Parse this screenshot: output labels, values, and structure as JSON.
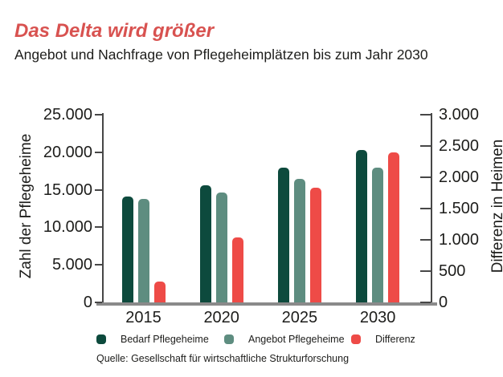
{
  "header": {
    "title": "Das Delta wird größer",
    "subtitle": "Angebot und Nachfrage von Pflegeheimplätzen bis zum Jahr 2030"
  },
  "colors": {
    "title_red": "#d85250",
    "bedarf": "#0d4a3d",
    "angebot": "#5e8d80",
    "differenz": "#ee4b47",
    "axis_line": "#474747",
    "baseline_gray": "#8a8a8a",
    "text": "#1d1d1b"
  },
  "chart_data": {
    "type": "bar",
    "categories": [
      "2015",
      "2020",
      "2025",
      "2030"
    ],
    "series": [
      {
        "name": "Bedarf Pflegeheime",
        "axis": "left",
        "color_key": "bedarf",
        "values": [
          14100,
          15650,
          18000,
          20300
        ]
      },
      {
        "name": "Angebot Pflegeheime",
        "axis": "left",
        "color_key": "angebot",
        "values": [
          13750,
          14650,
          16500,
          17900
        ]
      },
      {
        "name": "Differenz",
        "axis": "right",
        "color_key": "differenz",
        "values": [
          330,
          1040,
          1830,
          2400
        ]
      }
    ],
    "left_axis": {
      "label": "Zahl der Pflegeheime",
      "min": 0,
      "max": 25000,
      "step": 5000,
      "tick_labels": [
        "0",
        "5.000",
        "10.000",
        "15.000",
        "20.000",
        "25.000"
      ]
    },
    "right_axis": {
      "label": "Differenz in Heimen",
      "min": 0,
      "max": 3000,
      "step": 500,
      "tick_labels": [
        "0",
        "500",
        "1.000",
        "1.500",
        "2.000",
        "2.500",
        "3.000"
      ]
    },
    "grid": false,
    "legend_position": "bottom"
  },
  "source": "Quelle: Gesellschaft für wirtschaftliche Strukturforschung"
}
